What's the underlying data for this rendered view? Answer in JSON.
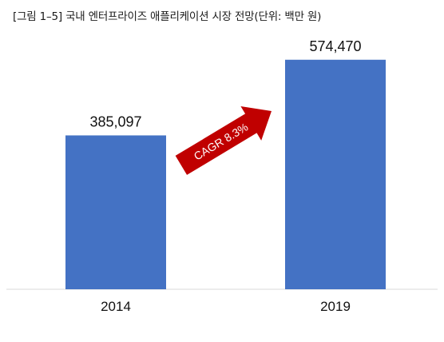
{
  "chart_data": {
    "type": "bar",
    "title": "[그림 1–5] 국내 엔터프라이즈 애플리케이션 시장 전망(단위: 백만 원)",
    "categories": [
      "2014",
      "2019"
    ],
    "values": [
      385097,
      574470
    ],
    "value_labels": [
      "385,097",
      "574,470"
    ],
    "ylim": [
      0,
      660000
    ],
    "grid": false,
    "bar_color": "#4472C4",
    "annotation": {
      "text": "CAGR 8.3%",
      "color": "#C00000"
    }
  }
}
